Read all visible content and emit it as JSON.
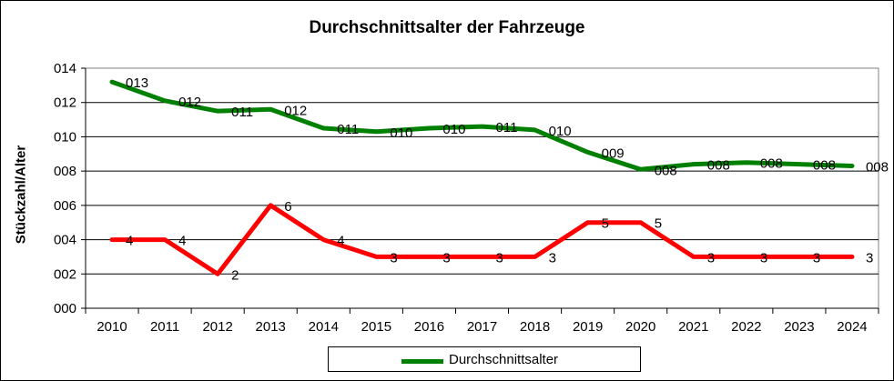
{
  "chart_data": {
    "type": "line",
    "title": "Durchschnittsalter der Fahrzeuge",
    "xlabel": "",
    "ylabel": "Stückzahl/Alter",
    "ylim": [
      0,
      14
    ],
    "ytick_labels": [
      "000",
      "002",
      "004",
      "006",
      "008",
      "010",
      "012",
      "014"
    ],
    "categories": [
      "2010",
      "2011",
      "2012",
      "2013",
      "2014",
      "2015",
      "2016",
      "2017",
      "2018",
      "2019",
      "2020",
      "2021",
      "2022",
      "2023",
      "2024"
    ],
    "grid": true,
    "legend": "bottom",
    "series": [
      {
        "name": "Durchschnittsalter",
        "color": "#008000",
        "values": [
          13.2,
          12.1,
          11.5,
          11.6,
          10.5,
          10.3,
          10.5,
          10.6,
          10.4,
          9.1,
          8.1,
          8.4,
          8.5,
          8.4,
          8.3
        ],
        "data_labels": [
          "013",
          "012",
          "011",
          "012",
          "011",
          "010",
          "010",
          "011",
          "010",
          "009",
          "008",
          "008",
          "008",
          "008",
          "008"
        ]
      },
      {
        "name": "",
        "color": "#ff0000",
        "values": [
          4,
          4,
          2,
          6,
          4,
          3,
          3,
          3,
          3,
          5,
          5,
          3,
          3,
          3,
          3
        ],
        "data_labels": [
          "4",
          "4",
          "2",
          "6",
          "4",
          "3",
          "3",
          "3",
          "3",
          "5",
          "5",
          "3",
          "3",
          "3",
          "3"
        ]
      }
    ]
  }
}
